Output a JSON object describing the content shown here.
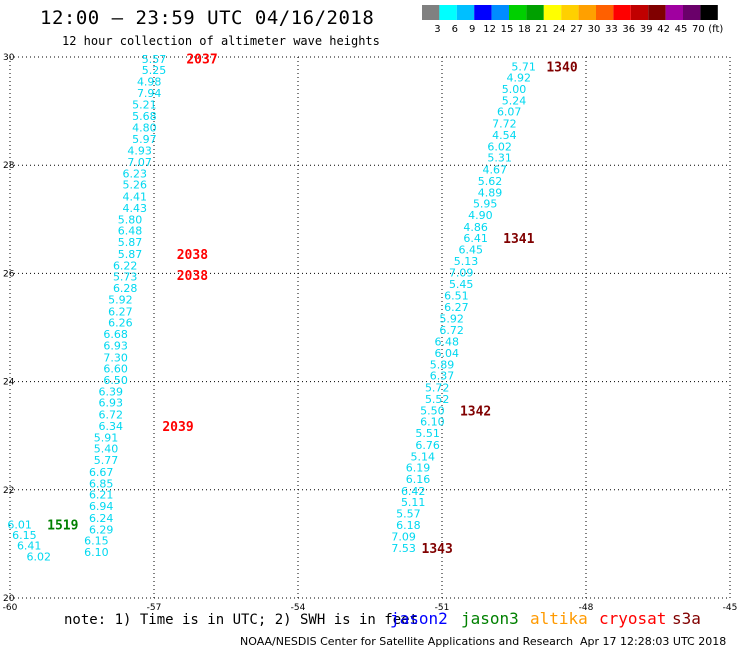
{
  "header": {
    "title": "12:00 – 23:59 UTC 04/16/2018",
    "subtitle": "12 hour collection of altimeter wave heights"
  },
  "colorbar": {
    "colors": [
      "#808080",
      "#00ffff",
      "#00bfff",
      "#0000ff",
      "#008cff",
      "#00d000",
      "#00a000",
      "#ffff00",
      "#ffd000",
      "#ffa000",
      "#ff6000",
      "#ff0000",
      "#c00000",
      "#800000",
      "#a000a0",
      "#6a006a",
      "#000000"
    ],
    "labels": [
      "3",
      "6",
      "9",
      "12",
      "15",
      "18",
      "21",
      "24",
      "27",
      "30",
      "33",
      "36",
      "39",
      "42",
      "45",
      "70",
      "(ft)"
    ]
  },
  "chart_data": {
    "type": "scatter",
    "xlim": [
      -60,
      -45
    ],
    "ylim": [
      20,
      30
    ],
    "x_ticks": [
      "-60",
      "-57",
      "-54",
      "-51",
      "-48",
      "-45"
    ],
    "y_ticks": [
      "20",
      "22",
      "24",
      "26",
      "28",
      "30"
    ],
    "grid": true,
    "tracks": [
      {
        "satellite": "cryosat",
        "color": "#00d8f0",
        "points": [
          {
            "x": -57.0,
            "y": 29.96,
            "v": "5.57"
          },
          {
            "x": -57.0,
            "y": 29.76,
            "v": "5.25"
          },
          {
            "x": -57.1,
            "y": 29.55,
            "v": "4.98"
          },
          {
            "x": -57.1,
            "y": 29.33,
            "v": "7.94"
          },
          {
            "x": -57.2,
            "y": 29.12,
            "v": "5.21"
          },
          {
            "x": -57.2,
            "y": 28.91,
            "v": "5.68"
          },
          {
            "x": -57.2,
            "y": 28.7,
            "v": "4.80"
          },
          {
            "x": -57.2,
            "y": 28.48,
            "v": "5.97"
          },
          {
            "x": -57.3,
            "y": 28.27,
            "v": "4.93"
          },
          {
            "x": -57.3,
            "y": 28.06,
            "v": "7.07"
          },
          {
            "x": -57.4,
            "y": 27.85,
            "v": "6.23"
          },
          {
            "x": -57.4,
            "y": 27.64,
            "v": "5.26"
          },
          {
            "x": -57.4,
            "y": 27.42,
            "v": "4.41"
          },
          {
            "x": -57.4,
            "y": 27.21,
            "v": "4.43"
          },
          {
            "x": -57.5,
            "y": 27.0,
            "v": "5.80"
          },
          {
            "x": -57.5,
            "y": 26.79,
            "v": "6.48"
          },
          {
            "x": -57.5,
            "y": 26.58,
            "v": "5.87"
          },
          {
            "x": -57.5,
            "y": 26.36,
            "v": "5.87"
          },
          {
            "x": -57.6,
            "y": 26.15,
            "v": "6.22"
          },
          {
            "x": -57.6,
            "y": 25.94,
            "v": "5.73"
          },
          {
            "x": -57.6,
            "y": 25.73,
            "v": "6.28"
          },
          {
            "x": -57.7,
            "y": 25.52,
            "v": "5.92"
          },
          {
            "x": -57.7,
            "y": 25.3,
            "v": "6.27"
          },
          {
            "x": -57.7,
            "y": 25.09,
            "v": "6.26"
          },
          {
            "x": -57.8,
            "y": 24.88,
            "v": "6.68"
          },
          {
            "x": -57.8,
            "y": 24.67,
            "v": "6.93"
          },
          {
            "x": -57.8,
            "y": 24.45,
            "v": "7.30"
          },
          {
            "x": -57.8,
            "y": 24.24,
            "v": "6.60"
          },
          {
            "x": -57.8,
            "y": 24.03,
            "v": "6.50"
          },
          {
            "x": -57.9,
            "y": 23.82,
            "v": "6.39"
          },
          {
            "x": -57.9,
            "y": 23.61,
            "v": "6.93"
          },
          {
            "x": -57.9,
            "y": 23.39,
            "v": "6.72"
          },
          {
            "x": -57.9,
            "y": 23.18,
            "v": "6.34"
          },
          {
            "x": -58.0,
            "y": 22.97,
            "v": "5.91"
          },
          {
            "x": -58.0,
            "y": 22.76,
            "v": "5.40"
          },
          {
            "x": -58.0,
            "y": 22.55,
            "v": "5.77"
          },
          {
            "x": -58.1,
            "y": 22.33,
            "v": "6.67"
          },
          {
            "x": -58.1,
            "y": 22.12,
            "v": "6.85"
          },
          {
            "x": -58.1,
            "y": 21.91,
            "v": "6.21"
          },
          {
            "x": -58.1,
            "y": 21.7,
            "v": "6.94"
          },
          {
            "x": -58.1,
            "y": 21.48,
            "v": "6.24"
          },
          {
            "x": -58.1,
            "y": 21.27,
            "v": "6.29"
          },
          {
            "x": -58.2,
            "y": 21.06,
            "v": "6.15"
          },
          {
            "x": -58.2,
            "y": 20.85,
            "v": "6.10"
          }
        ],
        "time_labels": [
          {
            "x": -56.0,
            "y": 29.97,
            "text": "2037"
          },
          {
            "x": -56.2,
            "y": 26.36,
            "text": "2038"
          },
          {
            "x": -56.2,
            "y": 25.97,
            "text": "2038"
          },
          {
            "x": -56.5,
            "y": 23.18,
            "text": "2039"
          }
        ]
      },
      {
        "satellite": "s3a",
        "color": "#00d8f0",
        "points": [
          {
            "x": -49.3,
            "y": 29.82,
            "v": "5.71"
          },
          {
            "x": -49.4,
            "y": 29.62,
            "v": "4.92"
          },
          {
            "x": -49.5,
            "y": 29.41,
            "v": "5.00"
          },
          {
            "x": -49.5,
            "y": 29.2,
            "v": "5.24"
          },
          {
            "x": -49.6,
            "y": 28.99,
            "v": "6.07"
          },
          {
            "x": -49.7,
            "y": 28.77,
            "v": "7.72"
          },
          {
            "x": -49.7,
            "y": 28.56,
            "v": "4.54"
          },
          {
            "x": -49.8,
            "y": 28.35,
            "v": "6.02"
          },
          {
            "x": -49.8,
            "y": 28.14,
            "v": "5.31"
          },
          {
            "x": -49.9,
            "y": 27.92,
            "v": "4.67"
          },
          {
            "x": -50.0,
            "y": 27.71,
            "v": "5.62"
          },
          {
            "x": -50.0,
            "y": 27.5,
            "v": "4.89"
          },
          {
            "x": -50.1,
            "y": 27.29,
            "v": "5.95"
          },
          {
            "x": -50.2,
            "y": 27.08,
            "v": "4.90"
          },
          {
            "x": -50.3,
            "y": 26.86,
            "v": "4.86"
          },
          {
            "x": -50.3,
            "y": 26.65,
            "v": "6.41"
          },
          {
            "x": -50.4,
            "y": 26.44,
            "v": "6.45"
          },
          {
            "x": -50.5,
            "y": 26.23,
            "v": "5.13"
          },
          {
            "x": -50.6,
            "y": 26.02,
            "v": "7.09"
          },
          {
            "x": -50.6,
            "y": 25.8,
            "v": "5.45"
          },
          {
            "x": -50.7,
            "y": 25.59,
            "v": "6.51"
          },
          {
            "x": -50.7,
            "y": 25.38,
            "v": "6.27"
          },
          {
            "x": -50.8,
            "y": 25.17,
            "v": "5.92"
          },
          {
            "x": -50.8,
            "y": 24.95,
            "v": "6.72"
          },
          {
            "x": -50.9,
            "y": 24.74,
            "v": "6.48"
          },
          {
            "x": -50.9,
            "y": 24.53,
            "v": "6.04"
          },
          {
            "x": -51.0,
            "y": 24.32,
            "v": "5.89"
          },
          {
            "x": -51.0,
            "y": 24.11,
            "v": "6.37"
          },
          {
            "x": -51.1,
            "y": 23.89,
            "v": "5.72"
          },
          {
            "x": -51.1,
            "y": 23.68,
            "v": "5.52"
          },
          {
            "x": -51.2,
            "y": 23.47,
            "v": "5.50"
          },
          {
            "x": -51.2,
            "y": 23.26,
            "v": "6.10"
          },
          {
            "x": -51.3,
            "y": 23.05,
            "v": "5.51"
          },
          {
            "x": -51.3,
            "y": 22.83,
            "v": "6.76"
          },
          {
            "x": -51.4,
            "y": 22.62,
            "v": "5.14"
          },
          {
            "x": -51.5,
            "y": 22.41,
            "v": "6.19"
          },
          {
            "x": -51.5,
            "y": 22.2,
            "v": "6.16"
          },
          {
            "x": -51.6,
            "y": 21.98,
            "v": "6.42"
          },
          {
            "x": -51.6,
            "y": 21.77,
            "v": "5.11"
          },
          {
            "x": -51.7,
            "y": 21.56,
            "v": "5.57"
          },
          {
            "x": -51.7,
            "y": 21.35,
            "v": "6.18"
          },
          {
            "x": -51.8,
            "y": 21.14,
            "v": "7.09"
          },
          {
            "x": -51.8,
            "y": 20.92,
            "v": "7.53"
          }
        ],
        "time_labels": [
          {
            "x": -48.5,
            "y": 29.82,
            "text": "1340"
          },
          {
            "x": -49.4,
            "y": 26.65,
            "text": "1341"
          },
          {
            "x": -50.3,
            "y": 23.47,
            "text": "1342"
          },
          {
            "x": -51.1,
            "y": 20.92,
            "text": "1343"
          }
        ]
      },
      {
        "satellite": "jason3",
        "color": "#00d8f0",
        "points": [
          {
            "x": -59.8,
            "y": 21.36,
            "v": "6.01"
          },
          {
            "x": -59.7,
            "y": 21.16,
            "v": "6.15"
          },
          {
            "x": -59.6,
            "y": 20.97,
            "v": "6.41"
          },
          {
            "x": -59.4,
            "y": 20.77,
            "v": "6.02"
          }
        ],
        "time_labels": [
          {
            "x": -58.9,
            "y": 21.36,
            "text": "1519"
          }
        ]
      }
    ]
  },
  "note": "note: 1) Time is in UTC; 2) SWH is in feet",
  "satellites": [
    {
      "name": "jason2",
      "color": "#0000ff"
    },
    {
      "name": "jason3",
      "color": "#008000"
    },
    {
      "name": "altika",
      "color": "#ff9a00"
    },
    {
      "name": "cryosat",
      "color": "#ff0000"
    },
    {
      "name": "s3a",
      "color": "#800000"
    }
  ],
  "footer": "NOAA/NESDIS Center for Satellite Applications and Research",
  "footer_stamp": "Apr 17 12:28:03 UTC 2018"
}
